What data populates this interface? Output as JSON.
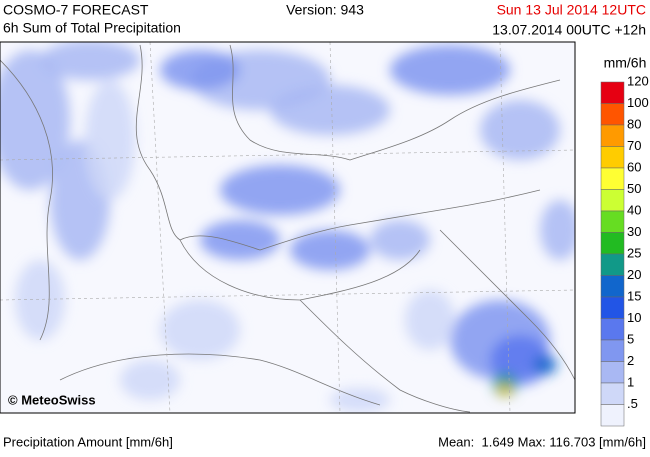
{
  "header": {
    "title": "COSMO-7 FORECAST",
    "subtitle": "6h Sum of Total Precipitation",
    "version": "Version: 943",
    "valid_time": "Sun 13 Jul 2014 12UTC",
    "run_time": "13.07.2014 00UTC +12h"
  },
  "map": {
    "credit": "© MeteoSwiss"
  },
  "legend": {
    "unit": "mm/6h",
    "entries": [
      {
        "label": "120",
        "color": "#e60012"
      },
      {
        "label": "100",
        "color": "#ff5500"
      },
      {
        "label": "80",
        "color": "#ff9a00"
      },
      {
        "label": "70",
        "color": "#ffcc00"
      },
      {
        "label": "60",
        "color": "#ffff33"
      },
      {
        "label": "50",
        "color": "#ccff33"
      },
      {
        "label": "40",
        "color": "#66dd22"
      },
      {
        "label": "30",
        "color": "#22bb22"
      },
      {
        "label": "25",
        "color": "#119988"
      },
      {
        "label": "20",
        "color": "#1166cc"
      },
      {
        "label": "15",
        "color": "#2255e6"
      },
      {
        "label": "10",
        "color": "#5a78ee"
      },
      {
        "label": "5",
        "color": "#8097f0"
      },
      {
        "label": "2",
        "color": "#a9b8f3"
      },
      {
        "label": "1",
        "color": "#cfd8f8"
      },
      {
        "label": ".5",
        "color": "#eff2fd"
      }
    ]
  },
  "footer": {
    "left": "Precipitation Amount [mm/6h]",
    "right": "Mean:  1.649 Max: 116.703 [mm/6h]"
  }
}
